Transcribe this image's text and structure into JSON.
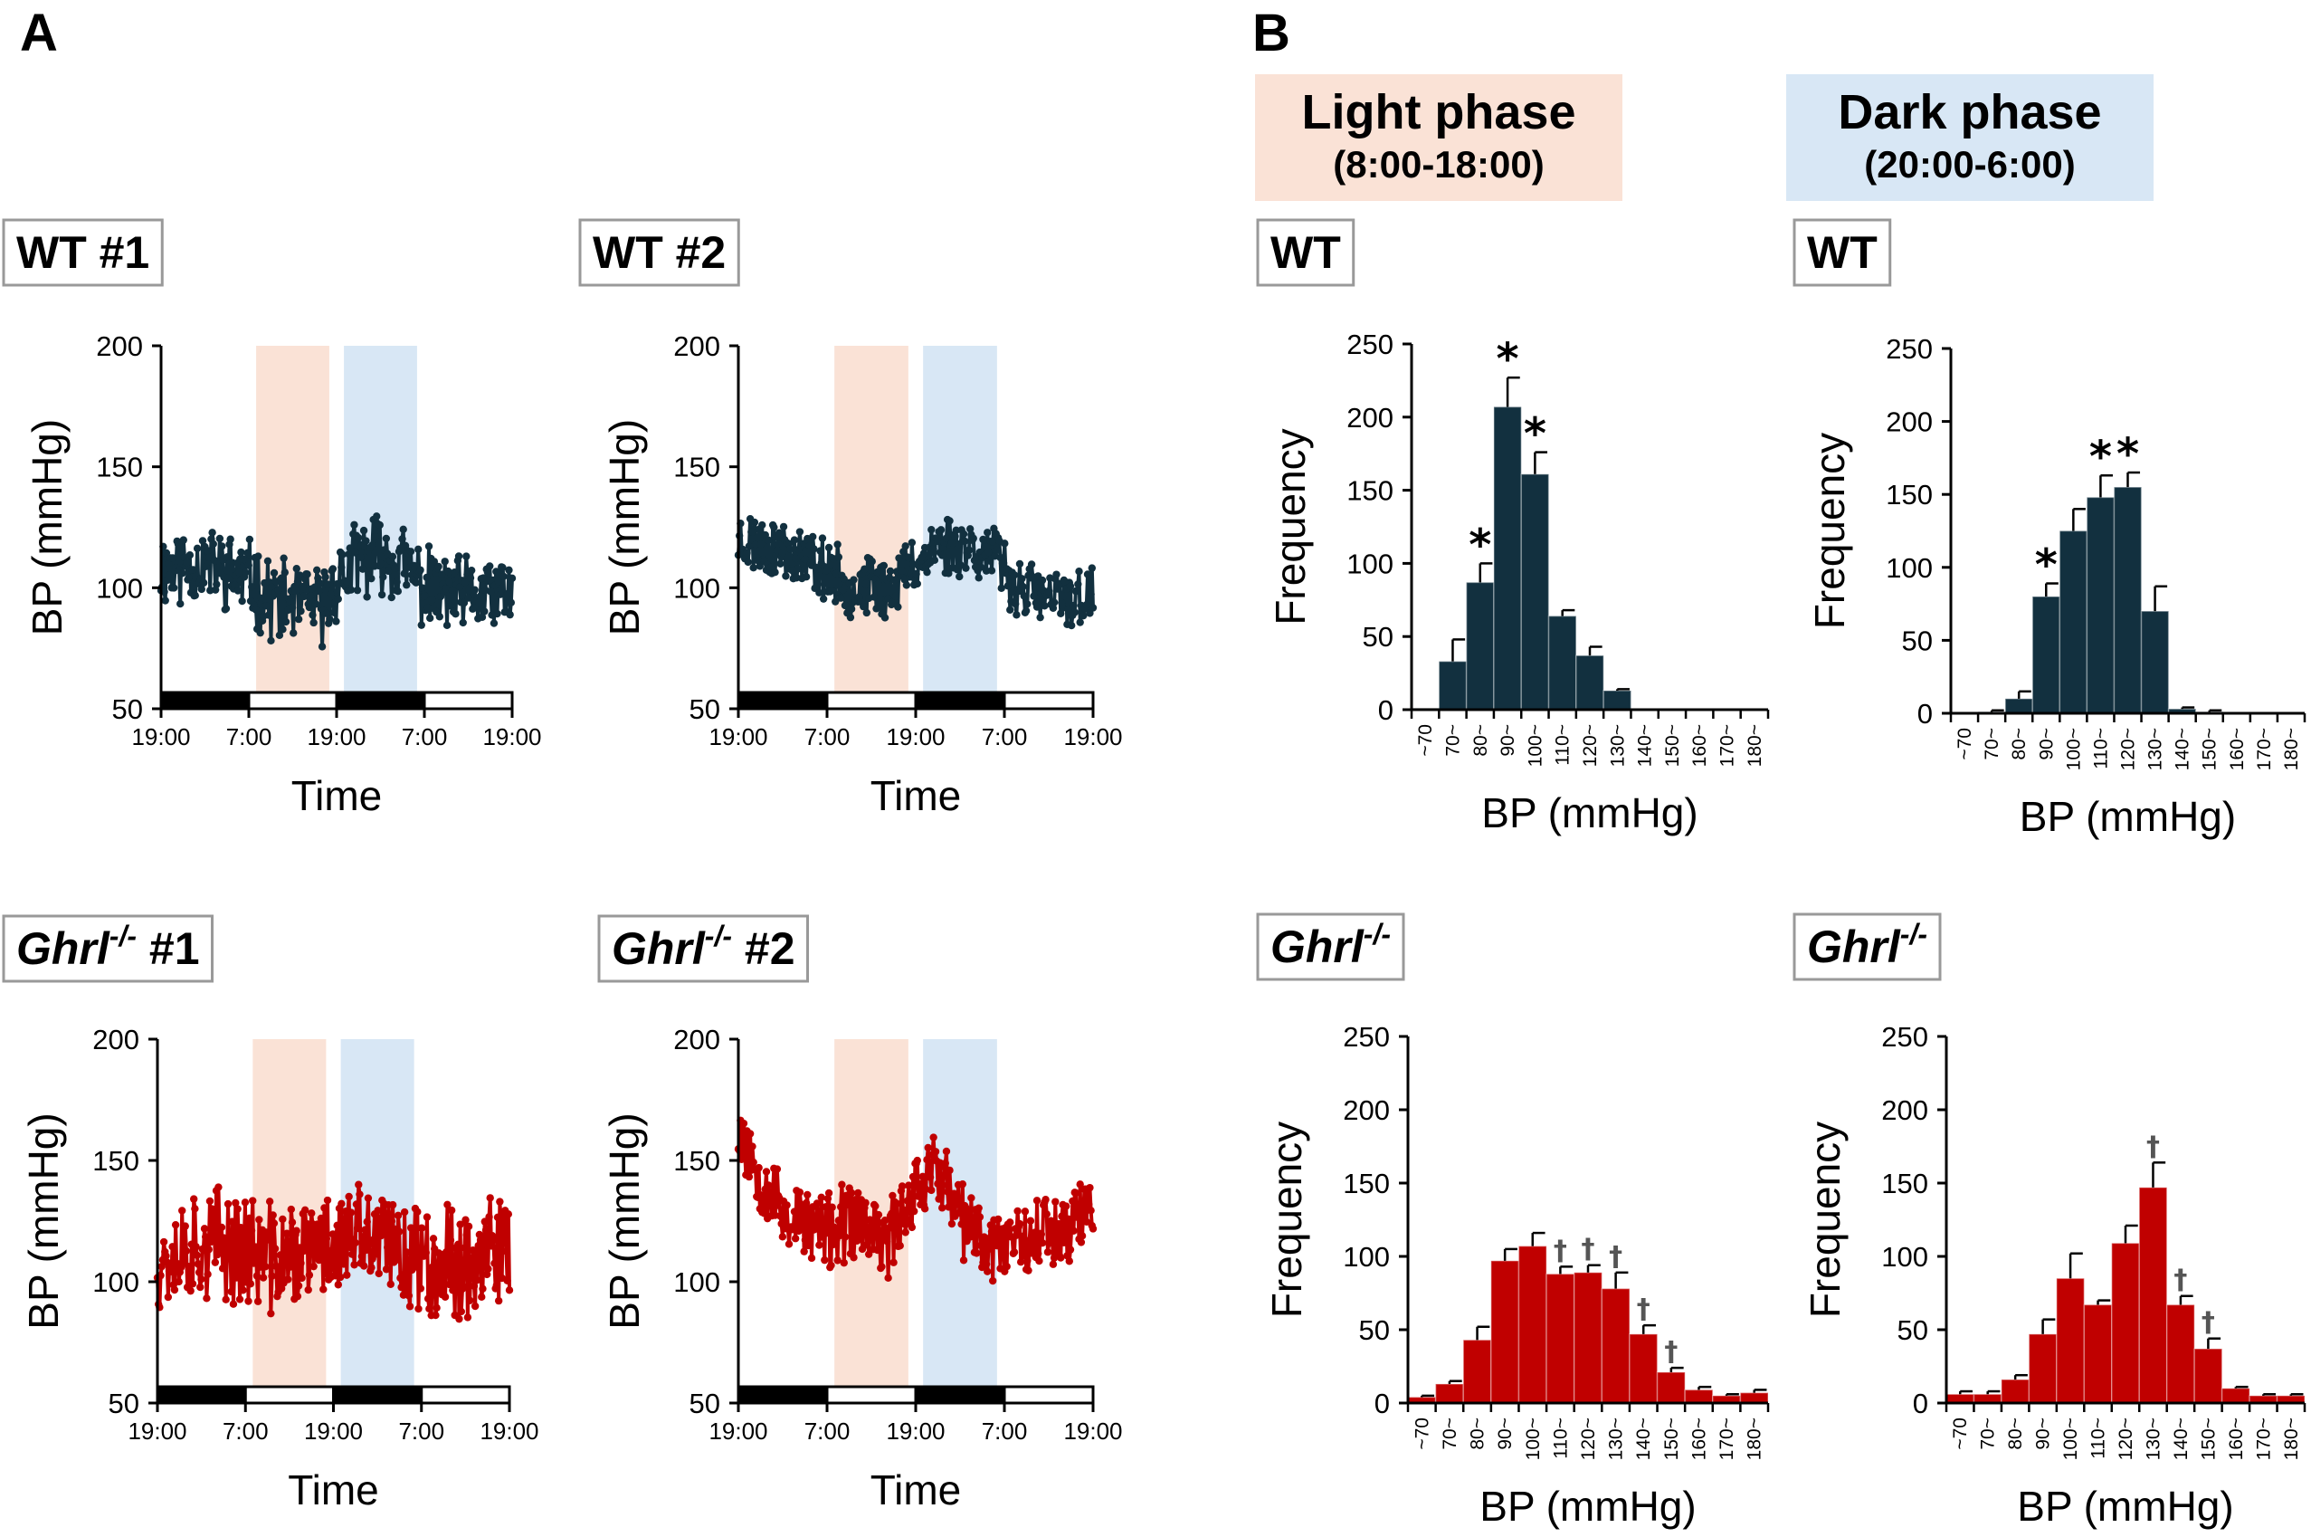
{
  "panels": {
    "a": "A",
    "b": "B"
  },
  "colors": {
    "wt": "#12303f",
    "ko": "#c00000",
    "light_phase": "#fae2d6",
    "dark_phase": "#d8e7f5"
  },
  "phases": {
    "light": {
      "title": "Light phase",
      "hours": "(8:00-18:00)"
    },
    "dark": {
      "title": "Dark phase",
      "hours": "(20:00-6:00)"
    }
  },
  "chart_data": [
    {
      "id": "wt1",
      "type": "line",
      "title": "WT #1",
      "title_main": "WT",
      "title_sup": "",
      "title_suffix": " #1",
      "xlabel": "Time",
      "ylabel": "BP (mmHg)",
      "ylim": [
        50,
        200
      ],
      "yticks": [
        50,
        100,
        150,
        200
      ],
      "xticks": [
        "19:00",
        "7:00",
        "19:00",
        "7:00",
        "19:00"
      ],
      "light_phase_span_hours": [
        13,
        23
      ],
      "dark_phase_span_hours": [
        25,
        35
      ],
      "lights_bar": [
        {
          "start": 0,
          "end": 12,
          "state": "dark"
        },
        {
          "start": 12,
          "end": 24,
          "state": "light"
        },
        {
          "start": 24,
          "end": 36,
          "state": "dark"
        },
        {
          "start": 36,
          "end": 48,
          "state": "light"
        }
      ],
      "series": [
        {
          "name": "WT #1",
          "color": "#12303f",
          "seed": 11,
          "profile": [
            [
              0,
              108
            ],
            [
              6,
              110
            ],
            [
              12,
              104
            ],
            [
              14,
              96
            ],
            [
              18,
              94
            ],
            [
              22,
              92
            ],
            [
              24,
              102
            ],
            [
              27,
              112
            ],
            [
              30,
              114
            ],
            [
              33,
              110
            ],
            [
              36,
              100
            ],
            [
              42,
              96
            ],
            [
              48,
              98
            ]
          ],
          "amplitude": 14,
          "points": 330
        }
      ]
    },
    {
      "id": "wt2",
      "type": "line",
      "title": "WT #2",
      "title_main": "WT",
      "title_sup": "",
      "title_suffix": " #2",
      "xlabel": "Time",
      "ylabel": "BP (mmHg)",
      "ylim": [
        50,
        200
      ],
      "yticks": [
        50,
        100,
        150,
        200
      ],
      "xticks": [
        "19:00",
        "7:00",
        "19:00",
        "7:00",
        "19:00"
      ],
      "light_phase_span_hours": [
        13,
        23
      ],
      "dark_phase_span_hours": [
        25,
        35
      ],
      "lights_bar": [
        {
          "start": 0,
          "end": 12,
          "state": "dark"
        },
        {
          "start": 12,
          "end": 24,
          "state": "light"
        },
        {
          "start": 24,
          "end": 36,
          "state": "dark"
        },
        {
          "start": 36,
          "end": 48,
          "state": "light"
        }
      ],
      "series": [
        {
          "name": "WT #2",
          "color": "#12303f",
          "seed": 23,
          "profile": [
            [
              0,
              120
            ],
            [
              6,
              116
            ],
            [
              12,
              108
            ],
            [
              15,
              100
            ],
            [
              20,
              100
            ],
            [
              24,
              110
            ],
            [
              27,
              118
            ],
            [
              31,
              118
            ],
            [
              35,
              112
            ],
            [
              37,
              102
            ],
            [
              42,
              95
            ],
            [
              48,
              96
            ]
          ],
          "amplitude": 11,
          "points": 330
        }
      ]
    },
    {
      "id": "ko1",
      "type": "line",
      "title": "Ghrl-/- #1",
      "title_main": "Ghrl",
      "title_sup": "-/-",
      "title_suffix": " #1",
      "xlabel": "Time",
      "ylabel": "BP (mmHg)",
      "ylim": [
        50,
        200
      ],
      "yticks": [
        50,
        100,
        150,
        200
      ],
      "xticks": [
        "19:00",
        "7:00",
        "19:00",
        "7:00",
        "19:00"
      ],
      "light_phase_span_hours": [
        13,
        23
      ],
      "dark_phase_span_hours": [
        25,
        35
      ],
      "lights_bar": [
        {
          "start": 0,
          "end": 12,
          "state": "dark"
        },
        {
          "start": 12,
          "end": 24,
          "state": "light"
        },
        {
          "start": 24,
          "end": 36,
          "state": "dark"
        },
        {
          "start": 36,
          "end": 48,
          "state": "light"
        }
      ],
      "series": [
        {
          "name": "Ghrl-/- #1",
          "color": "#c00000",
          "seed": 37,
          "profile": [
            [
              0,
              110
            ],
            [
              6,
              116
            ],
            [
              12,
              114
            ],
            [
              16,
              108
            ],
            [
              20,
              112
            ],
            [
              24,
              116
            ],
            [
              28,
              118
            ],
            [
              32,
              114
            ],
            [
              36,
              110
            ],
            [
              42,
              108
            ],
            [
              48,
              112
            ]
          ],
          "amplitude": 20,
          "points": 330
        }
      ]
    },
    {
      "id": "ko2",
      "type": "line",
      "title": "Ghrl-/- #2",
      "title_main": "Ghrl",
      "title_sup": "-/-",
      "title_suffix": " #2",
      "xlabel": "Time",
      "ylabel": "BP (mmHg)",
      "ylim": [
        50,
        200
      ],
      "yticks": [
        50,
        100,
        150,
        200
      ],
      "xticks": [
        "19:00",
        "7:00",
        "19:00",
        "7:00",
        "19:00"
      ],
      "light_phase_span_hours": [
        13,
        23
      ],
      "dark_phase_span_hours": [
        25,
        35
      ],
      "lights_bar": [
        {
          "start": 0,
          "end": 12,
          "state": "dark"
        },
        {
          "start": 12,
          "end": 24,
          "state": "light"
        },
        {
          "start": 24,
          "end": 36,
          "state": "dark"
        },
        {
          "start": 36,
          "end": 48,
          "state": "light"
        }
      ],
      "series": [
        {
          "name": "Ghrl-/- #2",
          "color": "#c00000",
          "seed": 53,
          "profile": [
            [
              0,
              165
            ],
            [
              2,
              150
            ],
            [
              6,
              128
            ],
            [
              12,
              120
            ],
            [
              16,
              125
            ],
            [
              20,
              115
            ],
            [
              24,
              140
            ],
            [
              27,
              148
            ],
            [
              30,
              125
            ],
            [
              34,
              115
            ],
            [
              38,
              120
            ],
            [
              44,
              122
            ],
            [
              48,
              132
            ]
          ],
          "amplitude": 14,
          "points": 330
        }
      ]
    },
    {
      "id": "hist-wt-light",
      "type": "bar",
      "title": "WT",
      "title_main": "WT",
      "title_sup": "",
      "xlabel": "BP (mmHg)",
      "ylabel": "Frequency",
      "ylim": [
        0,
        250
      ],
      "yticks": [
        0,
        50,
        100,
        150,
        200,
        250
      ],
      "categories": [
        "~70",
        "70~",
        "80~",
        "90~",
        "100~",
        "110~",
        "120~",
        "130~",
        "140~",
        "150~",
        "160~",
        "170~",
        "180~"
      ],
      "values": [
        1,
        33,
        87,
        207,
        161,
        64,
        37,
        13,
        0,
        0,
        0,
        0,
        0
      ],
      "errors": [
        0,
        15,
        13,
        20,
        15,
        4,
        6,
        1,
        0,
        0,
        0,
        0,
        0
      ],
      "markers": [
        "",
        "",
        "*",
        "*",
        "*",
        "",
        "",
        "",
        "",
        "",
        "",
        "",
        ""
      ],
      "color": "#12303f"
    },
    {
      "id": "hist-wt-dark",
      "type": "bar",
      "title": "WT",
      "title_main": "WT",
      "title_sup": "",
      "xlabel": "BP  (mmHg)",
      "ylabel": "Frequency",
      "ylim": [
        0,
        250
      ],
      "yticks": [
        0,
        50,
        100,
        150,
        200,
        250
      ],
      "categories": [
        "~70",
        "70~",
        "80~",
        "90~",
        "100~",
        "110~",
        "120~",
        "130~",
        "140~",
        "150~",
        "160~",
        "170~",
        "180~"
      ],
      "values": [
        0,
        1,
        10,
        80,
        125,
        148,
        155,
        70,
        3,
        1,
        0,
        0,
        0
      ],
      "errors": [
        0,
        1,
        5,
        9,
        15,
        15,
        10,
        17,
        1,
        1,
        0,
        0,
        0
      ],
      "markers": [
        "",
        "",
        "",
        "*",
        "",
        "*",
        "*",
        "",
        "",
        "",
        "",
        "",
        ""
      ],
      "color": "#12303f"
    },
    {
      "id": "hist-ko-light",
      "type": "bar",
      "title": "Ghrl-/-",
      "title_main": "Ghrl",
      "title_sup": "-/-",
      "xlabel": "BP (mmHg)",
      "ylabel": "Frequency",
      "ylim": [
        0,
        250
      ],
      "yticks": [
        0,
        50,
        100,
        150,
        200,
        250
      ],
      "categories": [
        "~70",
        "70~",
        "80~",
        "90~",
        "100~",
        "110~",
        "120~",
        "130~",
        "140~",
        "150~",
        "160~",
        "170~",
        "180~"
      ],
      "values": [
        4,
        13,
        43,
        97,
        107,
        88,
        89,
        78,
        47,
        21,
        9,
        5,
        7
      ],
      "errors": [
        1,
        2,
        9,
        8,
        9,
        5,
        5,
        11,
        6,
        3,
        2,
        1,
        2
      ],
      "markers": [
        "",
        "",
        "",
        "",
        "",
        "†",
        "†",
        "†",
        "†",
        "†",
        "",
        "",
        ""
      ],
      "color": "#c00000"
    },
    {
      "id": "hist-ko-dark",
      "type": "bar",
      "title": "Ghrl-/-",
      "title_main": "Ghrl",
      "title_sup": "-/-",
      "xlabel": "BP (mmHg)",
      "ylabel": "Frequency",
      "ylim": [
        0,
        250
      ],
      "yticks": [
        0,
        50,
        100,
        150,
        200,
        250
      ],
      "categories": [
        "~70",
        "70~",
        "80~",
        "90~",
        "100~",
        "110~",
        "120~",
        "130~",
        "140~",
        "150~",
        "160~",
        "170~",
        "180~"
      ],
      "values": [
        6,
        6,
        16,
        47,
        85,
        67,
        109,
        147,
        67,
        37,
        10,
        5,
        5
      ],
      "errors": [
        2,
        2,
        3,
        10,
        17,
        3,
        12,
        17,
        6,
        7,
        1,
        1,
        1
      ],
      "markers": [
        "",
        "",
        "",
        "",
        "",
        "",
        "",
        "†",
        "†",
        "†",
        "",
        "",
        ""
      ],
      "color": "#c00000"
    }
  ]
}
